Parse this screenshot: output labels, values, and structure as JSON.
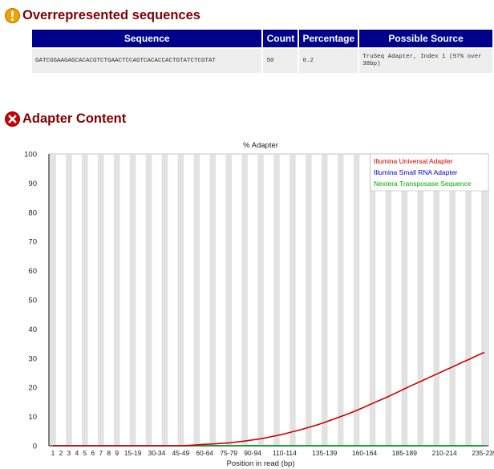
{
  "overrep": {
    "title": "Overrepresented sequences",
    "status_icon": "warning-icon",
    "headers": [
      "Sequence",
      "Count",
      "Percentage",
      "Possible Source"
    ],
    "rows": [
      {
        "sequence": "GATCGGAAGAGCACACGTCTGAACTCCAGTCACACCACTGTATCTCGTAT",
        "count": "50",
        "percentage": "0.2",
        "source": "TruSeq Adapter, Index 1 (97% over 38bp)"
      }
    ]
  },
  "adapter": {
    "title": "Adapter Content",
    "status_icon": "error-icon"
  },
  "colors": {
    "heading": "#800000",
    "table_header": "#00008b",
    "table_cell": "#eeeeee",
    "warning": "#f0a000",
    "error": "#cc0000"
  },
  "chart_data": {
    "type": "line",
    "title": "% Adapter",
    "xlabel": "Position in read (bp)",
    "ylabel": "",
    "ylim": [
      0,
      100
    ],
    "yticks": [
      0,
      10,
      20,
      30,
      40,
      50,
      60,
      70,
      80,
      90,
      100
    ],
    "grid": "alternating vertical bands",
    "legend_position": "top-right",
    "categories": [
      "1",
      "2",
      "3",
      "4",
      "5",
      "6",
      "7",
      "8",
      "9",
      "10-14",
      "15-19",
      "20-24",
      "25-29",
      "30-34",
      "35-39",
      "40-44",
      "45-49",
      "50-54",
      "55-59",
      "60-64",
      "65-69",
      "70-74",
      "75-79",
      "80-84",
      "85-89",
      "90-94",
      "95-99",
      "100-104",
      "105-109",
      "110-114",
      "115-119",
      "120-124",
      "125-129",
      "130-134",
      "135-139",
      "140-144",
      "145-149",
      "150-154",
      "155-159",
      "160-164",
      "165-169",
      "170-174",
      "175-179",
      "180-184",
      "185-189",
      "190-194",
      "195-199",
      "200-204",
      "205-209",
      "210-214",
      "215-219",
      "220-224",
      "225-229",
      "230-234",
      "235-239"
    ],
    "tick_labels": [
      "1",
      "2",
      "3",
      "4",
      "5",
      "6",
      "7",
      "8",
      "9",
      "15-19",
      "30-34",
      "45-49",
      "60-64",
      "75-79",
      "90-94",
      "110-114",
      "135-139",
      "160-164",
      "185-189",
      "210-214",
      "235-239"
    ],
    "series": [
      {
        "name": "Illumina Universal Adapter",
        "color": "#cc0000",
        "values": [
          0,
          0,
          0,
          0,
          0,
          0,
          0,
          0,
          0,
          0,
          0,
          0,
          0,
          0,
          0,
          0,
          0,
          0.1,
          0.3,
          0.5,
          0.6,
          0.8,
          1.0,
          1.3,
          1.6,
          2.0,
          2.4,
          2.9,
          3.5,
          4.1,
          4.8,
          5.5,
          6.3,
          7.1,
          8.0,
          9.0,
          10.0,
          11.0,
          12.1,
          13.3,
          14.5,
          15.7,
          16.9,
          18.2,
          19.5,
          20.8,
          22.0,
          23.3,
          24.5,
          25.8,
          27.0,
          28.3,
          29.5,
          30.8,
          32.0
        ]
      },
      {
        "name": "Illumina Small RNA Adapter",
        "color": "#0000cc",
        "values": [
          0,
          0,
          0,
          0,
          0,
          0,
          0,
          0,
          0,
          0,
          0,
          0,
          0,
          0,
          0,
          0,
          0,
          0,
          0,
          0,
          0,
          0,
          0,
          0,
          0,
          0,
          0,
          0,
          0,
          0,
          0,
          0,
          0,
          0,
          0,
          0,
          0,
          0,
          0,
          0,
          0,
          0,
          0,
          0,
          0,
          0,
          0,
          0,
          0,
          0,
          0,
          0,
          0,
          0,
          0
        ]
      },
      {
        "name": "Nextera Transposase Sequence",
        "color": "#00aa00",
        "values": [
          0,
          0,
          0,
          0,
          0,
          0,
          0,
          0,
          0,
          0,
          0,
          0,
          0,
          0,
          0,
          0,
          0,
          0,
          0,
          0,
          0,
          0,
          0,
          0,
          0,
          0,
          0,
          0,
          0,
          0,
          0,
          0,
          0,
          0,
          0,
          0,
          0,
          0,
          0,
          0,
          0,
          0,
          0,
          0,
          0,
          0,
          0,
          0,
          0,
          0,
          0,
          0,
          0,
          0,
          0
        ]
      }
    ]
  }
}
